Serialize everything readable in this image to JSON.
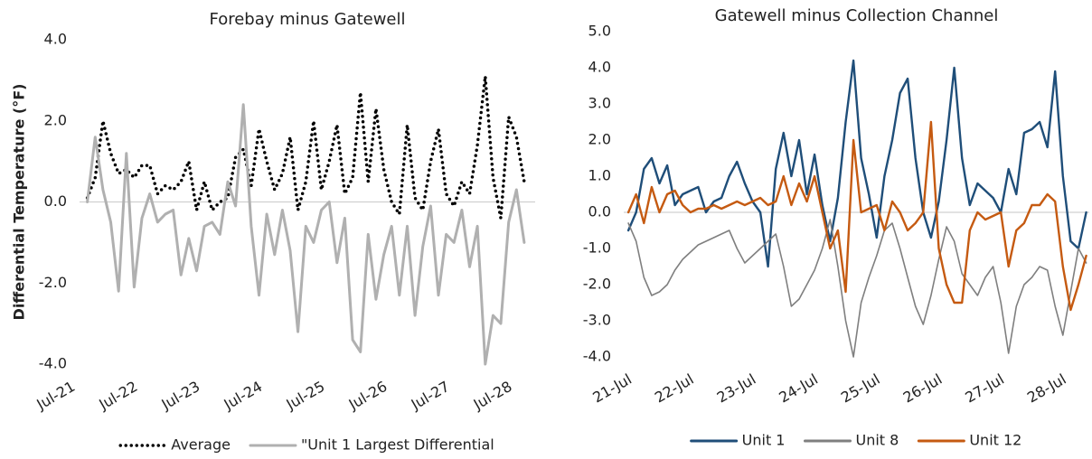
{
  "chart_data": [
    {
      "type": "line",
      "title": "Forebay minus Gatewell",
      "y_label": "Differential Temperature (°F)",
      "x": [
        21.125,
        21.25,
        21.375,
        21.5,
        21.625,
        21.75,
        21.875,
        22,
        22.125,
        22.25,
        22.375,
        22.5,
        22.625,
        22.75,
        22.875,
        23,
        23.125,
        23.25,
        23.375,
        23.5,
        23.625,
        23.75,
        23.875,
        24,
        24.125,
        24.25,
        24.375,
        24.5,
        24.625,
        24.75,
        24.875,
        25,
        25.125,
        25.25,
        25.375,
        25.5,
        25.625,
        25.75,
        25.875,
        26,
        26.125,
        26.25,
        26.375,
        26.5,
        26.625,
        26.75,
        26.875,
        27,
        27.125,
        27.25,
        27.375,
        27.5,
        27.625,
        27.75,
        27.875,
        28,
        28.125
      ],
      "series": [
        {
          "name": "Average",
          "color": "#000000",
          "line_style": "dotted",
          "values": [
            0.1,
            0.6,
            2.0,
            1.2,
            0.7,
            0.8,
            0.6,
            0.9,
            0.9,
            0.2,
            0.4,
            0.3,
            0.5,
            1.0,
            -0.2,
            0.5,
            -0.2,
            0.0,
            0.1,
            1.1,
            1.3,
            0.4,
            1.8,
            1.0,
            0.3,
            0.7,
            1.6,
            -0.2,
            0.5,
            2.0,
            0.3,
            1.0,
            1.9,
            0.2,
            0.6,
            2.7,
            0.5,
            2.3,
            0.8,
            0.0,
            -0.3,
            1.9,
            0.1,
            -0.2,
            1.0,
            1.8,
            0.2,
            -0.1,
            0.5,
            0.2,
            1.4,
            3.1,
            0.6,
            -0.4,
            2.1,
            1.6,
            0.5
          ]
        },
        {
          "name": "\"Unit 1 Largest Differential",
          "color": "#b0b0b0",
          "line_style": "solid",
          "values": [
            0.0,
            1.6,
            0.3,
            -0.5,
            -2.2,
            1.2,
            -2.1,
            -0.4,
            0.2,
            -0.5,
            -0.3,
            -0.2,
            -1.8,
            -0.9,
            -1.7,
            -0.6,
            -0.5,
            -0.8,
            0.5,
            -0.1,
            2.4,
            -0.6,
            -2.3,
            -0.3,
            -1.3,
            -0.2,
            -1.2,
            -3.2,
            -0.6,
            -1.0,
            -0.2,
            0.0,
            -1.5,
            -0.4,
            -3.4,
            -3.7,
            -0.8,
            -2.4,
            -1.3,
            -0.6,
            -2.3,
            -0.6,
            -2.8,
            -1.1,
            -0.1,
            -2.3,
            -0.8,
            -1.0,
            -0.2,
            -1.6,
            -0.6,
            -4.0,
            -2.8,
            -3.0,
            -0.5,
            0.3,
            -1.0
          ]
        }
      ],
      "xlim": [
        21,
        28.3
      ],
      "xticks": [
        {
          "value": 21,
          "label": "Jul-21"
        },
        {
          "value": 22,
          "label": "Jul-22"
        },
        {
          "value": 23,
          "label": "Jul-23"
        },
        {
          "value": 24,
          "label": "Jul-24"
        },
        {
          "value": 25,
          "label": "Jul-25"
        },
        {
          "value": 26,
          "label": "Jul-26"
        },
        {
          "value": 27,
          "label": "Jul-27"
        },
        {
          "value": 28,
          "label": "Jul-28"
        }
      ],
      "ylim": [
        -4,
        4
      ],
      "yticks": [
        {
          "value": -4,
          "label": "-4.0"
        },
        {
          "value": -2,
          "label": "-2.0"
        },
        {
          "value": 0,
          "label": "0.0"
        },
        {
          "value": 2,
          "label": "2.0"
        },
        {
          "value": 4,
          "label": "4.0"
        }
      ],
      "legend": "bottom"
    },
    {
      "type": "line",
      "title": "Gatewell minus Collection Channel",
      "x": [
        20.875,
        21,
        21.125,
        21.25,
        21.375,
        21.5,
        21.625,
        21.75,
        21.875,
        22,
        22.125,
        22.25,
        22.375,
        22.5,
        22.625,
        22.75,
        22.875,
        23,
        23.125,
        23.25,
        23.375,
        23.5,
        23.625,
        23.75,
        23.875,
        24,
        24.125,
        24.25,
        24.375,
        24.5,
        24.625,
        24.75,
        24.875,
        25,
        25.125,
        25.25,
        25.375,
        25.5,
        25.625,
        25.75,
        25.875,
        26,
        26.125,
        26.25,
        26.375,
        26.5,
        26.625,
        26.75,
        26.875,
        27,
        27.125,
        27.25,
        27.375,
        27.5,
        27.625,
        27.75,
        27.875,
        28,
        28.125,
        28.25
      ],
      "series": [
        {
          "name": "Unit 1",
          "color": "#1f4e79",
          "line_style": "solid",
          "values": [
            -0.5,
            0.0,
            1.2,
            1.5,
            0.8,
            1.3,
            0.2,
            0.5,
            0.6,
            0.7,
            0.0,
            0.3,
            0.4,
            1.0,
            1.4,
            0.8,
            0.3,
            0.0,
            -1.5,
            1.2,
            2.2,
            1.0,
            2.0,
            0.5,
            1.6,
            0.2,
            -0.8,
            0.4,
            2.5,
            4.2,
            1.5,
            0.5,
            -0.7,
            1.0,
            2.0,
            3.3,
            3.7,
            1.5,
            0.0,
            -0.7,
            0.3,
            2.0,
            4.0,
            1.5,
            0.2,
            0.8,
            0.6,
            0.4,
            0.0,
            1.2,
            0.5,
            2.2,
            2.3,
            2.5,
            1.8,
            3.9,
            1.0,
            -0.8,
            -1.0,
            0.0
          ]
        },
        {
          "name": "Unit 8",
          "color": "#7f7f7f",
          "line_style": "solid",
          "values": [
            -0.3,
            -0.8,
            -1.8,
            -2.3,
            -2.2,
            -2.0,
            -1.6,
            -1.3,
            -1.1,
            -0.9,
            -0.8,
            -0.7,
            -0.6,
            -0.5,
            -1.0,
            -1.4,
            -1.2,
            -1.0,
            -0.8,
            -0.6,
            -1.5,
            -2.6,
            -2.4,
            -2.0,
            -1.6,
            -1.0,
            -0.2,
            -1.5,
            -3.0,
            -4.0,
            -2.5,
            -1.8,
            -1.2,
            -0.5,
            -0.3,
            -1.0,
            -1.8,
            -2.6,
            -3.1,
            -2.3,
            -1.3,
            -0.4,
            -0.8,
            -1.7,
            -2.0,
            -2.3,
            -1.8,
            -1.5,
            -2.5,
            -3.9,
            -2.6,
            -2.0,
            -1.8,
            -1.5,
            -1.6,
            -2.6,
            -3.4,
            -2.2,
            -1.0,
            -1.4
          ]
        },
        {
          "name": "Unit 12",
          "color": "#c55a11",
          "line_style": "solid",
          "values": [
            0.0,
            0.5,
            -0.3,
            0.7,
            0.0,
            0.5,
            0.6,
            0.2,
            0.0,
            0.1,
            0.1,
            0.2,
            0.1,
            0.2,
            0.3,
            0.2,
            0.3,
            0.4,
            0.2,
            0.3,
            1.0,
            0.2,
            0.8,
            0.3,
            1.0,
            0.0,
            -1.0,
            -0.5,
            -2.2,
            2.0,
            0.0,
            0.1,
            0.2,
            -0.5,
            0.3,
            0.0,
            -0.5,
            -0.3,
            0.0,
            2.5,
            -1.0,
            -2.0,
            -2.5,
            -2.5,
            -0.5,
            0.0,
            -0.2,
            -0.1,
            0.0,
            -1.5,
            -0.5,
            -0.3,
            0.2,
            0.2,
            0.5,
            0.3,
            -1.5,
            -2.7,
            -2.0,
            -1.2
          ]
        }
      ],
      "xlim": [
        20.8,
        28.3
      ],
      "xticks": [
        {
          "value": 21,
          "label": "21-Jul"
        },
        {
          "value": 22,
          "label": "22-Jul"
        },
        {
          "value": 23,
          "label": "23-Jul"
        },
        {
          "value": 24,
          "label": "24-Jul"
        },
        {
          "value": 25,
          "label": "25-Jul"
        },
        {
          "value": 26,
          "label": "26-Jul"
        },
        {
          "value": 27,
          "label": "27-Jul"
        },
        {
          "value": 28,
          "label": "28-Jul"
        }
      ],
      "ylim": [
        -4,
        5
      ],
      "yticks": [
        {
          "value": -4,
          "label": "-4.0"
        },
        {
          "value": -3,
          "label": "-3.0"
        },
        {
          "value": -2,
          "label": "-2.0"
        },
        {
          "value": -1,
          "label": "-1.0"
        },
        {
          "value": 0,
          "label": "0.0"
        },
        {
          "value": 1,
          "label": "1.0"
        },
        {
          "value": 2,
          "label": "2.0"
        },
        {
          "value": 3,
          "label": "3.0"
        },
        {
          "value": 4,
          "label": "4.0"
        },
        {
          "value": 5,
          "label": "5.0"
        }
      ],
      "legend": "bottom"
    }
  ]
}
